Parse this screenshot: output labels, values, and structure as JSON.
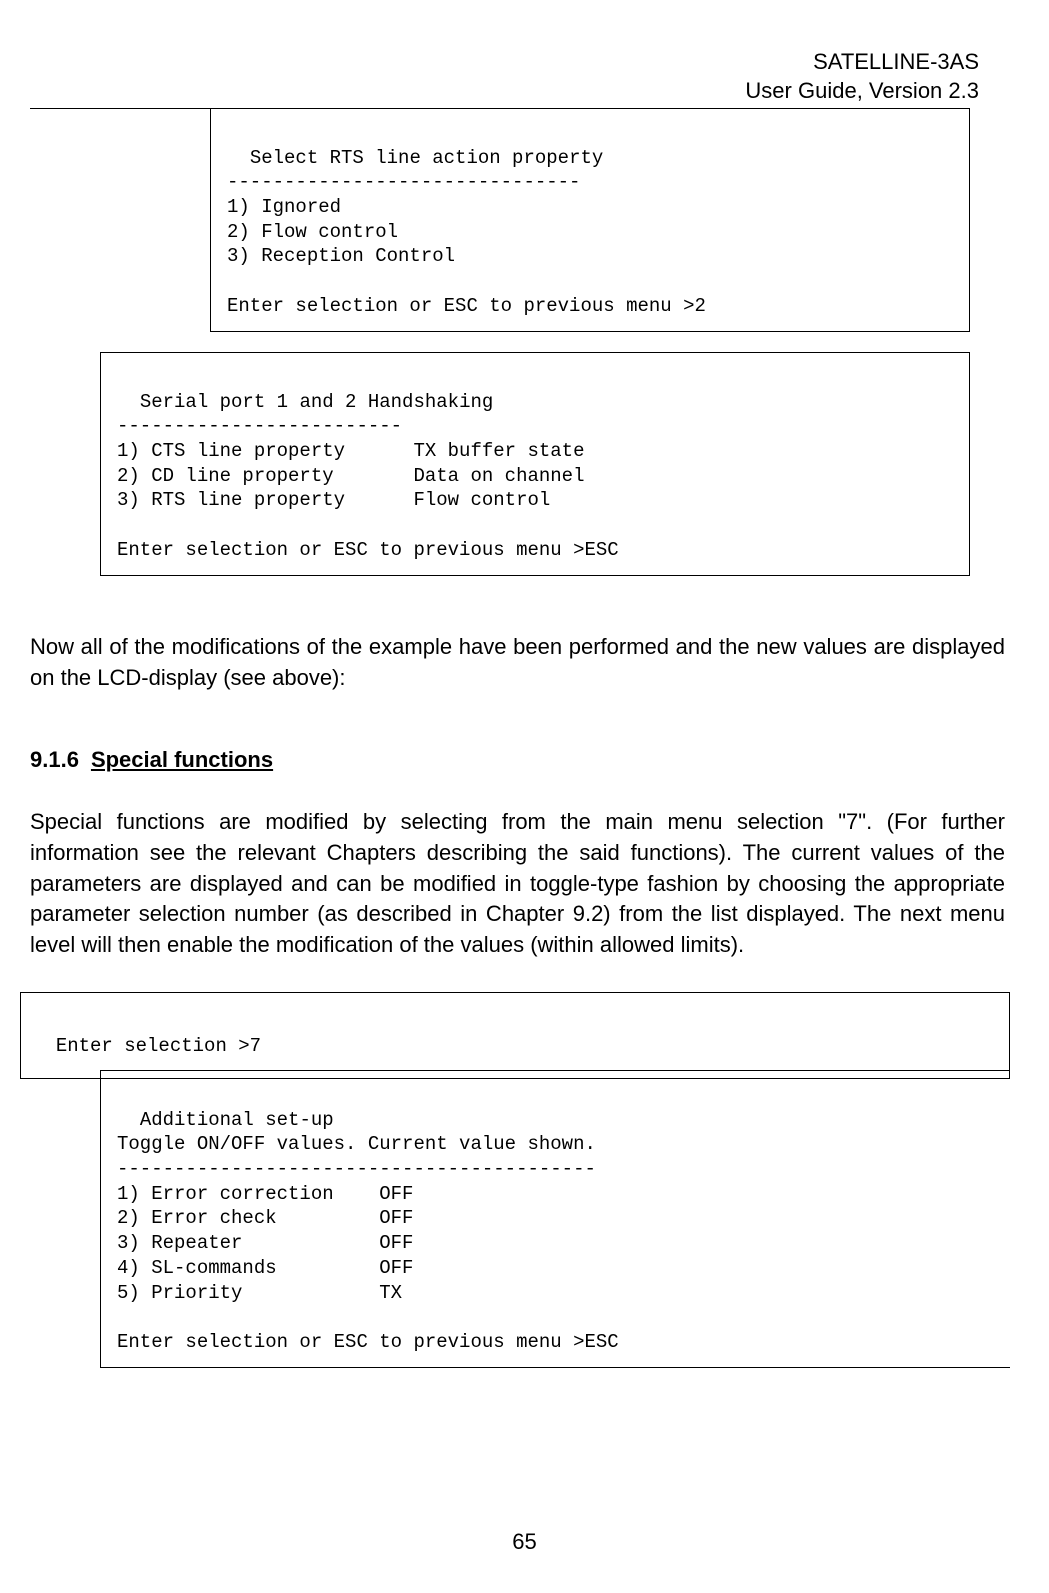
{
  "header": {
    "line1": "SATELLINE-3AS",
    "line2": "User Guide, Version 2.3"
  },
  "box1": {
    "content": "Select RTS line action property\n-------------------------------\n1) Ignored\n2) Flow control\n3) Reception Control\n\nEnter selection or ESC to previous menu >2"
  },
  "box2": {
    "content": "Serial port 1 and 2 Handshaking\n-------------------------\n1) CTS line property      TX buffer state\n2) CD line property       Data on channel\n3) RTS line property      Flow control\n\nEnter selection or ESC to previous menu >ESC"
  },
  "para1": "Now all of the modifications of the example have been performed and the new values are displayed on the LCD-display (see above):",
  "section": {
    "number": "9.1.6",
    "title": "Special functions"
  },
  "para2": "Special functions are modified by selecting from the main menu selection \"7\". (For further information see the relevant Chapters describing the said functions). The current values of the parameters are displayed and can be modified in toggle-type fashion by choosing the appropriate parameter selection number (as described in Chapter 9.2) from the list displayed. The next menu level will then enable the modification of the values (within allowed limits).",
  "box3": {
    "content": "Enter selection >7"
  },
  "box4": {
    "content": "Additional set-up\nToggle ON/OFF values. Current value shown.\n------------------------------------------\n1) Error correction    OFF\n2) Error check         OFF\n3) Repeater            OFF\n4) SL-commands         OFF\n5) Priority            TX\n\nEnter selection or ESC to previous menu >ESC"
  },
  "pageNumber": "65"
}
